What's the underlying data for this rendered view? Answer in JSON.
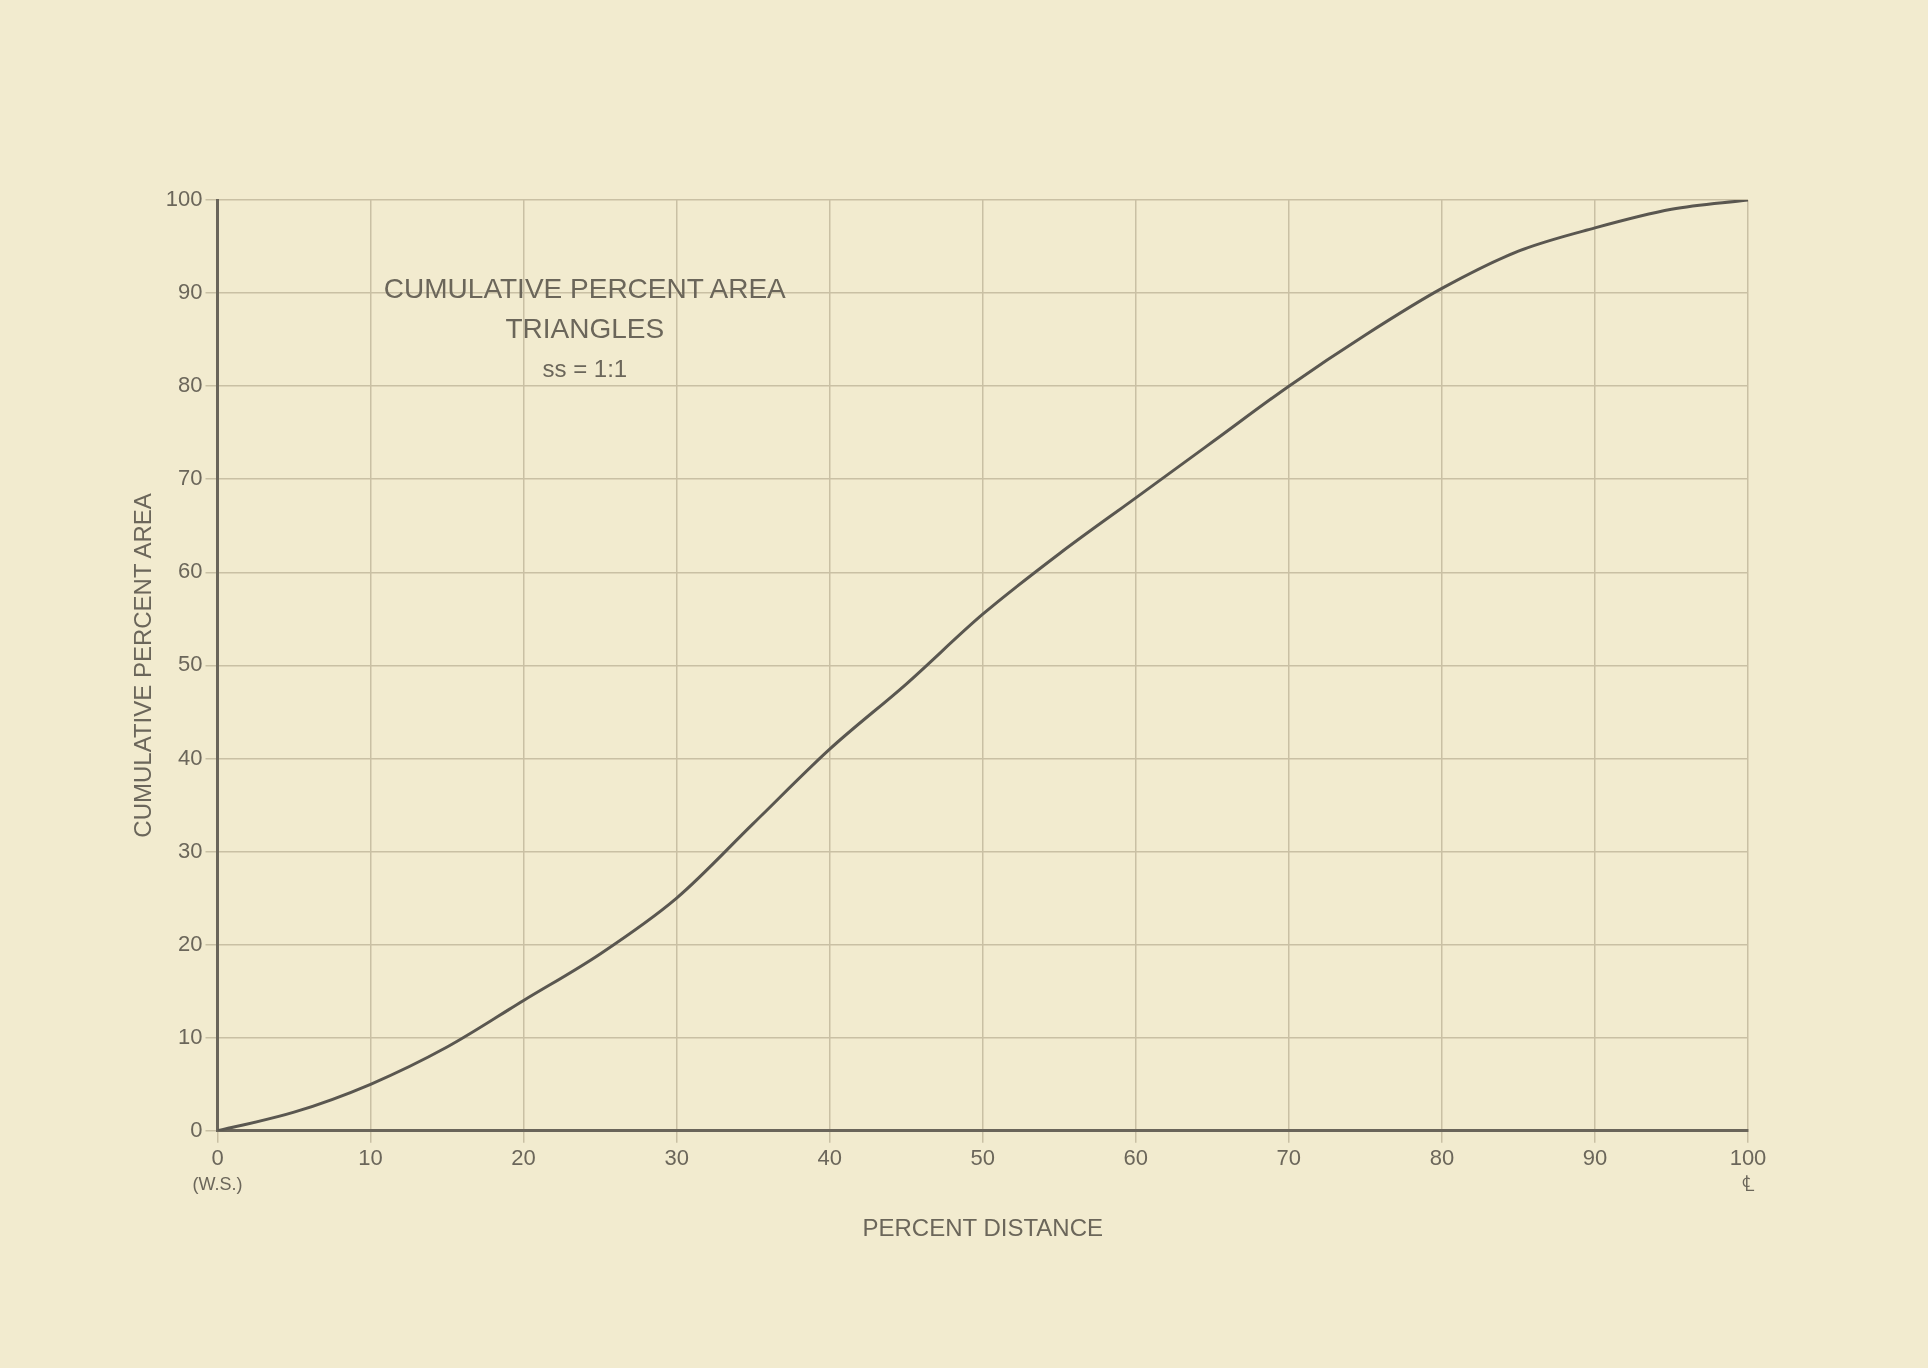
{
  "chart_data": {
    "type": "line",
    "title": "CUMULATIVE PERCENT AREA",
    "subtitle": "TRIANGLES",
    "xlabel": "PERCENT DISTANCE",
    "ylabel": "CUMULATIVE PERCENT AREA",
    "annotations": [
      "ss = 1:1",
      "(W.S.)",
      "℄"
    ],
    "x": [
      0,
      5,
      10,
      15,
      20,
      25,
      30,
      35,
      40,
      45,
      50,
      55,
      60,
      65,
      70,
      75,
      80,
      85,
      90,
      95,
      100
    ],
    "series": [
      {
        "color": "#5a5750",
        "values": [
          0,
          2,
          5,
          9,
          14,
          19,
          25,
          33,
          41,
          48,
          55.5,
          62,
          68,
          74,
          80,
          85.5,
          90.5,
          94.5,
          97,
          99,
          100
        ]
      }
    ],
    "xlim": [
      0,
      100
    ],
    "ylim": [
      0,
      100
    ],
    "xticks": [
      0,
      10,
      20,
      30,
      40,
      50,
      60,
      70,
      80,
      90,
      100
    ],
    "yticks": [
      0,
      10,
      20,
      30,
      40,
      50,
      60,
      70,
      80,
      90,
      100
    ],
    "grid": true,
    "legend": false,
    "marker": "none",
    "line_style": "solid"
  }
}
